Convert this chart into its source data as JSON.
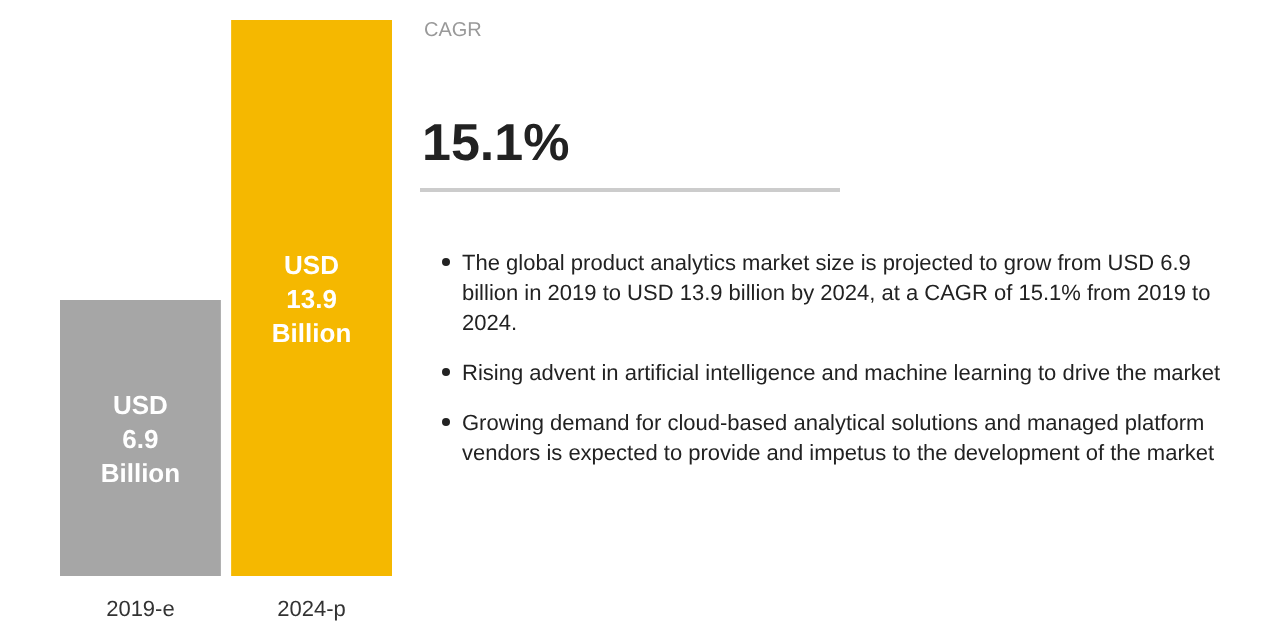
{
  "chart_data": {
    "type": "bar",
    "categories": [
      "2019-e",
      "2024-p"
    ],
    "values": [
      6.9,
      13.9
    ],
    "colors": [
      "#a6a6a6",
      "#f5b800"
    ],
    "value_labels": [
      "USD 6.9 Billion",
      "USD 13.9 Billion"
    ],
    "annotations": [
      "CAGR",
      "15.1%",
      "The global product analytics market size is projected to grow from USD 6.9 billion in 2019 to USD 13.9 billion by 2024, at a CAGR of 15.1% from 2019 to 2024.",
      "Rising advent in artificial intelligence and machine learning to drive the market",
      "Growing demand for cloud-based analytical solutions and managed platform vendors is expected to provide and impetus to the development of the market"
    ]
  }
}
